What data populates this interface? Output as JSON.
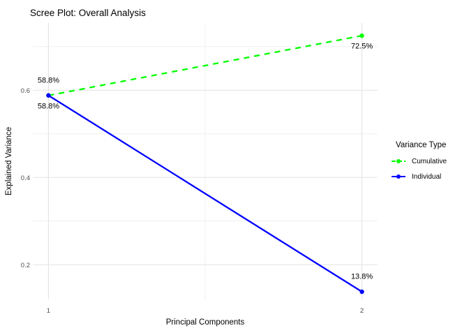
{
  "chart_data": {
    "type": "line",
    "title": "Scree Plot: Overall Analysis",
    "xlabel": "Principal Components",
    "ylabel": "Explained Variance",
    "legend_title": "Variance Type",
    "legend_position": "right",
    "grid": true,
    "x": [
      1,
      2
    ],
    "xlim": [
      0.95,
      2.05
    ],
    "ylim": [
      0.1204,
      0.754
    ],
    "x_ticks": [
      {
        "value": 1,
        "label": "1"
      },
      {
        "value": 2,
        "label": "2"
      }
    ],
    "y_ticks": [
      {
        "value": 0.2,
        "label": "0.2"
      },
      {
        "value": 0.4,
        "label": "0.4"
      },
      {
        "value": 0.6,
        "label": "0.6"
      }
    ],
    "x_minor": [
      1.5
    ],
    "y_minor": [
      0.3,
      0.5,
      0.7
    ],
    "series": [
      {
        "name": "Cumulative",
        "color": "#00ff00",
        "linetype": "dashed",
        "values": [
          0.588,
          0.725
        ]
      },
      {
        "name": "Individual",
        "color": "#0000ff",
        "linetype": "solid",
        "values": [
          0.588,
          0.138
        ]
      }
    ],
    "annotations": [
      {
        "x": 1,
        "y": 0.588,
        "text": "58.8%",
        "placement": "above",
        "series": "Cumulative"
      },
      {
        "x": 1,
        "y": 0.588,
        "text": "58.8%",
        "placement": "below",
        "series": "Individual"
      },
      {
        "x": 2,
        "y": 0.725,
        "text": "72.5%",
        "placement": "below",
        "series": "Cumulative"
      },
      {
        "x": 2,
        "y": 0.138,
        "text": "13.8%",
        "placement": "above",
        "series": "Individual"
      }
    ],
    "colors": {
      "grid_major": "#e3e3e3",
      "grid_minor": "#efefef",
      "tick_text": "#4d4d4d",
      "text": "#000000",
      "background": "#ffffff"
    }
  }
}
